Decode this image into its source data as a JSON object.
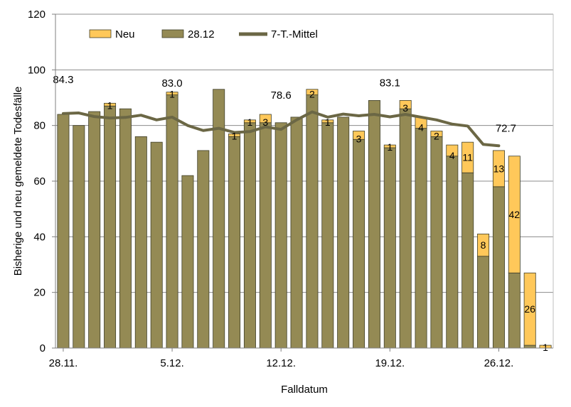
{
  "chart_data": {
    "type": "bar",
    "stacked": true,
    "xlabel": "Falldatum",
    "ylabel": "Bisherige und neu gemeldete Todesfälle",
    "ylim": [
      0,
      120
    ],
    "yticks": [
      "0",
      "20",
      "40",
      "60",
      "80",
      "100",
      "120"
    ],
    "xtick_labels": [
      {
        "index": 0,
        "label": "28.11."
      },
      {
        "index": 7,
        "label": "5.12."
      },
      {
        "index": 14,
        "label": "12.12."
      },
      {
        "index": 21,
        "label": "19.12."
      },
      {
        "index": 28,
        "label": "26.12."
      }
    ],
    "legend": [
      {
        "key": "neu",
        "label": "Neu",
        "color": "#ffc85a"
      },
      {
        "key": "base",
        "label": "28.12",
        "color": "#948a54"
      },
      {
        "key": "avg",
        "label": "7-T.-Mittel",
        "color": "#6b6745"
      }
    ],
    "series": [
      {
        "name": "28.12",
        "color": "#948a54",
        "values": [
          84,
          80,
          85,
          87,
          86,
          76,
          74,
          91,
          62,
          71,
          93,
          76,
          81,
          81,
          81,
          83,
          91,
          81,
          83,
          75,
          89,
          72,
          86,
          79,
          76,
          69,
          63,
          33,
          58,
          27,
          1,
          0
        ]
      },
      {
        "name": "Neu",
        "color": "#ffc85a",
        "values": [
          0,
          0,
          0,
          1,
          0,
          0,
          0,
          1,
          0,
          0,
          0,
          1,
          1,
          3,
          0,
          0,
          2,
          1,
          0,
          3,
          0,
          1,
          3,
          4,
          2,
          4,
          11,
          8,
          13,
          42,
          26,
          1
        ]
      }
    ],
    "neu_labels": [
      "",
      "",
      "",
      "1",
      "",
      "",
      "",
      "1",
      "",
      "",
      "",
      "1",
      "1",
      "3",
      "",
      "",
      "2",
      "1",
      "",
      "3",
      "",
      "1",
      "3",
      "4",
      "2",
      "4",
      "11",
      "8",
      "13",
      "42",
      "26",
      "1"
    ],
    "moving_average": {
      "name": "7-T.-Mittel",
      "color": "#6b6745",
      "values": [
        84.3,
        84.5,
        83.2,
        82.7,
        82.9,
        83.7,
        82.0,
        83.0,
        80.0,
        78.2,
        79.0,
        77.5,
        77.8,
        79.5,
        78.6,
        82.0,
        84.9,
        83.0,
        84.1,
        83.5,
        84.0,
        83.1,
        84.0,
        83.0,
        82.0,
        80.5,
        79.8,
        73.2,
        72.7
      ],
      "annotations": [
        {
          "index": 0,
          "text": "84.3"
        },
        {
          "index": 7,
          "text": "83.0"
        },
        {
          "index": 14,
          "text": "78.6"
        },
        {
          "index": 21,
          "text": "83.1"
        },
        {
          "index": 28,
          "text": "72.7"
        }
      ]
    }
  }
}
